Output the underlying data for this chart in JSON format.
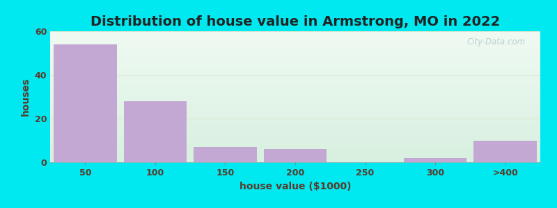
{
  "title": "Distribution of house value in Armstrong, MO in 2022",
  "xlabel": "house value ($1000)",
  "ylabel": "houses",
  "categories": [
    "50",
    "100",
    "150",
    "200",
    "250",
    "300",
    ">400"
  ],
  "values": [
    54,
    28,
    7,
    6,
    0,
    2,
    10
  ],
  "bar_color": "#c4a8d4",
  "bar_edgecolor": "#c4a8d4",
  "background_outer": "#00e8f0",
  "bg_top": "#f0faf2",
  "bg_bottom": "#d8f0e0",
  "ylim": [
    0,
    60
  ],
  "yticks": [
    0,
    20,
    40,
    60
  ],
  "title_fontsize": 14,
  "label_fontsize": 10,
  "tick_fontsize": 9,
  "title_color": "#222222",
  "label_color": "#5a3a2a",
  "tick_color": "#5a3a2a",
  "watermark": "City-Data.com",
  "grid_color": "#d8e8d0"
}
